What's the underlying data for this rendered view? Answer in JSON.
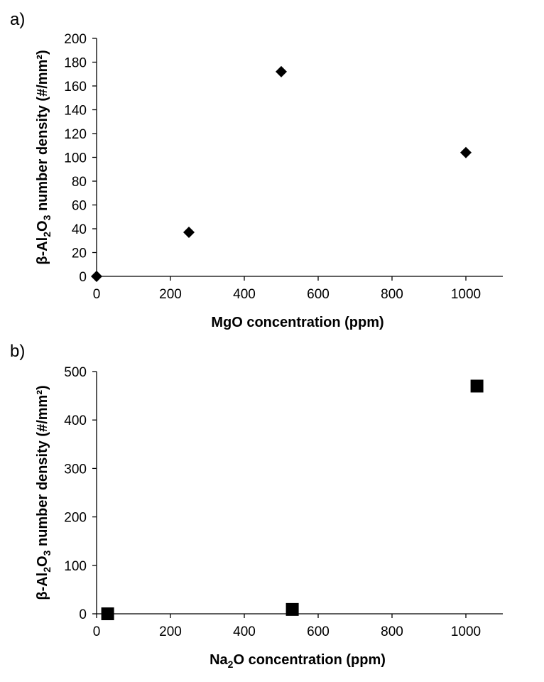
{
  "chart_data": [
    {
      "panel_label": "a)",
      "type": "scatter",
      "marker": "diamond",
      "xlabel": "MgO concentration (ppm)",
      "ylabel_parts": [
        "β-Al",
        "2",
        "O",
        "3",
        " number density (#/mm²)"
      ],
      "xlim": [
        0,
        1100
      ],
      "ylim": [
        0,
        200
      ],
      "xticks": [
        0,
        200,
        400,
        600,
        800,
        1000
      ],
      "yticks": [
        0,
        20,
        40,
        60,
        80,
        100,
        120,
        140,
        160,
        180,
        200
      ],
      "points": [
        {
          "x": 0,
          "y": 0
        },
        {
          "x": 250,
          "y": 37
        },
        {
          "x": 500,
          "y": 172
        },
        {
          "x": 1000,
          "y": 104
        }
      ],
      "grid": false,
      "legend": "none"
    },
    {
      "panel_label": "b)",
      "type": "scatter",
      "marker": "square",
      "xlabel_parts": [
        "Na",
        "2",
        "O concentration (ppm)"
      ],
      "ylabel_parts": [
        "β-Al",
        "2",
        "O",
        "3",
        " number density (#/mm²)"
      ],
      "xlim": [
        0,
        1100
      ],
      "ylim": [
        0,
        500
      ],
      "xticks": [
        0,
        200,
        400,
        600,
        800,
        1000
      ],
      "yticks": [
        0,
        100,
        200,
        300,
        400,
        500
      ],
      "points": [
        {
          "x": 30,
          "y": 0
        },
        {
          "x": 530,
          "y": 9
        },
        {
          "x": 1030,
          "y": 470
        }
      ],
      "grid": false,
      "legend": "none"
    }
  ],
  "colors": {
    "marker": "#000000",
    "axis": "#000000"
  }
}
